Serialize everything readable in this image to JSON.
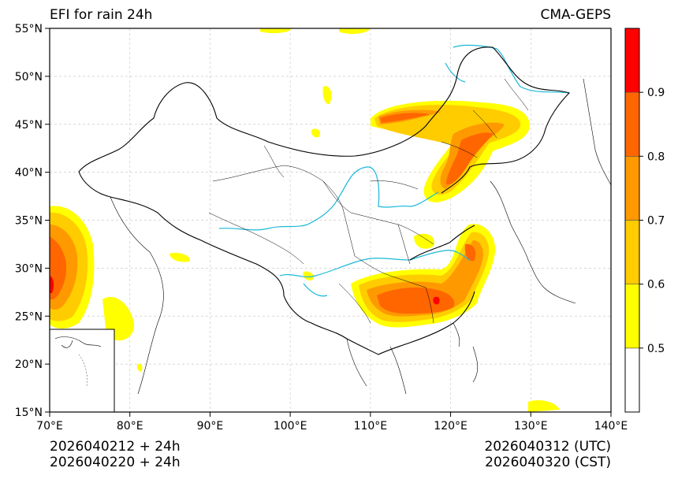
{
  "title_left": "EFI for rain 24h",
  "title_right": "CMA-GEPS",
  "footer": {
    "init_utc": "2026040212 + 24h",
    "init_cst": "2026040220 + 24h",
    "valid_utc": "2026040312 (UTC)",
    "valid_cst": "2026040320 (CST)"
  },
  "map": {
    "lon_range": [
      70,
      140
    ],
    "lat_range": [
      15,
      55
    ],
    "lon_ticks": [
      70,
      80,
      90,
      100,
      110,
      120,
      130,
      140
    ],
    "lat_ticks": [
      15,
      20,
      25,
      30,
      35,
      40,
      45,
      50,
      55
    ],
    "lon_tick_labels": [
      "70°E",
      "80°E",
      "90°E",
      "100°E",
      "110°E",
      "120°E",
      "130°E",
      "140°E"
    ],
    "lat_tick_labels": [
      "15°N",
      "20°N",
      "25°N",
      "30°N",
      "35°N",
      "40°N",
      "45°N",
      "50°N",
      "55°N"
    ],
    "grid": true
  },
  "colorbar": {
    "levels": [
      0.4,
      0.5,
      0.6,
      0.7,
      0.8,
      0.9,
      1.0
    ],
    "colors": [
      "#ffffff",
      "#ffff00",
      "#ffcc00",
      "#ff9900",
      "#ff6600",
      "#ff0000"
    ],
    "labels": [
      "0.5",
      "0.6",
      "0.7",
      "0.8",
      "0.9"
    ]
  },
  "colors": {
    "river": "#1ab8d8",
    "border": "#000000",
    "grid": "#cccccc"
  }
}
